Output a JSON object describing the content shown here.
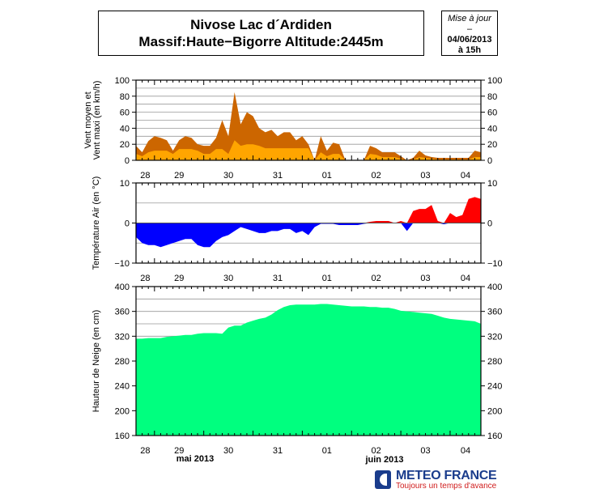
{
  "header": {
    "title_line1": "Nivose Lac d´Ardiden",
    "title_line2": "Massif:Haute−Bigorre Altitude:2445m",
    "update_label": "Mise à jour",
    "update_sep": "–",
    "update_date": "04/06/2013",
    "update_time": "à 15h"
  },
  "logo": {
    "name": "METEO FRANCE",
    "tagline": "Toujours un temps d'avance"
  },
  "colors": {
    "wind_mean": "#FFA500",
    "wind_max": "#CC6600",
    "temp_neg": "#0000FF",
    "temp_pos": "#FF0000",
    "snow": "#00FF7F",
    "grid": "#999999"
  },
  "chart_data": [
    {
      "type": "area",
      "ylabel": [
        "Vent moyen et",
        "Vent maxi (en km/h)"
      ],
      "ylim": [
        0,
        100
      ],
      "yticks": [
        0,
        20,
        40,
        60,
        80,
        100
      ],
      "grid": true,
      "xrange": [
        "2013-05-28 15h",
        "2013-06-04 15h"
      ],
      "day_labels": [
        "28",
        "29",
        "30",
        "31",
        "01",
        "02",
        "03",
        "04"
      ],
      "series": [
        {
          "key": "max",
          "values": [
            18,
            10,
            24,
            30,
            28,
            25,
            12,
            25,
            30,
            28,
            20,
            18,
            18,
            28,
            50,
            30,
            85,
            45,
            60,
            55,
            40,
            35,
            38,
            30,
            35,
            35,
            25,
            30,
            20,
            0,
            30,
            12,
            22,
            20,
            0,
            0,
            0,
            0,
            18,
            15,
            10,
            10,
            10,
            5,
            0,
            3,
            12,
            6,
            4,
            3,
            3,
            3,
            3,
            3,
            3,
            12,
            10
          ]
        },
        {
          "key": "mean",
          "values": [
            8,
            5,
            10,
            12,
            12,
            12,
            8,
            14,
            14,
            14,
            12,
            8,
            8,
            14,
            14,
            8,
            25,
            18,
            20,
            20,
            18,
            15,
            15,
            15,
            15,
            15,
            15,
            15,
            15,
            0,
            10,
            5,
            8,
            8,
            0,
            0,
            0,
            0,
            8,
            7,
            4,
            4,
            4,
            2,
            0,
            1,
            4,
            3,
            2,
            1,
            1,
            1,
            1,
            1,
            1,
            4,
            4
          ]
        }
      ]
    },
    {
      "type": "area",
      "ylabel": [
        "Température Air (en °C)"
      ],
      "ylim": [
        -10,
        10
      ],
      "yticks": [
        -10,
        0,
        10
      ],
      "ytick_labels": [
        "−10",
        "0",
        "10"
      ],
      "grid": true,
      "series": [
        {
          "key": "temp",
          "values": [
            -3.5,
            -5,
            -5.5,
            -5.5,
            -6,
            -5.5,
            -5,
            -4.5,
            -4,
            -4,
            -5.5,
            -6,
            -6,
            -4.5,
            -3.5,
            -3,
            -2,
            -1,
            -1.5,
            -2,
            -2.5,
            -2.5,
            -2,
            -2,
            -1.5,
            -1.5,
            -2.5,
            -2,
            -3,
            -1,
            -0.2,
            -0.2,
            -0.2,
            -0.5,
            -0.5,
            -0.5,
            -0.5,
            -0.2,
            0.3,
            0.5,
            0.5,
            0.5,
            0,
            0.5,
            -2,
            3,
            3.5,
            3.5,
            4.5,
            0.5,
            -0.3,
            2.5,
            1.5,
            2,
            6,
            6.5,
            6
          ]
        }
      ]
    },
    {
      "type": "area",
      "ylabel": [
        "Hauteur de Neige (en cm)"
      ],
      "ylim": [
        160,
        400
      ],
      "yticks": [
        160,
        200,
        240,
        280,
        320,
        360,
        400
      ],
      "grid": true,
      "month_labels": [
        "mai 2013",
        "juin 2013"
      ],
      "series": [
        {
          "key": "snow",
          "values": [
            316,
            316,
            317,
            317,
            317,
            319,
            320,
            321,
            322,
            322,
            324,
            325,
            325,
            325,
            324,
            334,
            337,
            337,
            342,
            345,
            348,
            350,
            355,
            362,
            367,
            370,
            371,
            371,
            371,
            371,
            372,
            372,
            371,
            370,
            369,
            368,
            368,
            368,
            367,
            367,
            366,
            366,
            364,
            361,
            360,
            359,
            358,
            357,
            356,
            353,
            350,
            348,
            347,
            346,
            345,
            344,
            340
          ]
        }
      ]
    }
  ]
}
